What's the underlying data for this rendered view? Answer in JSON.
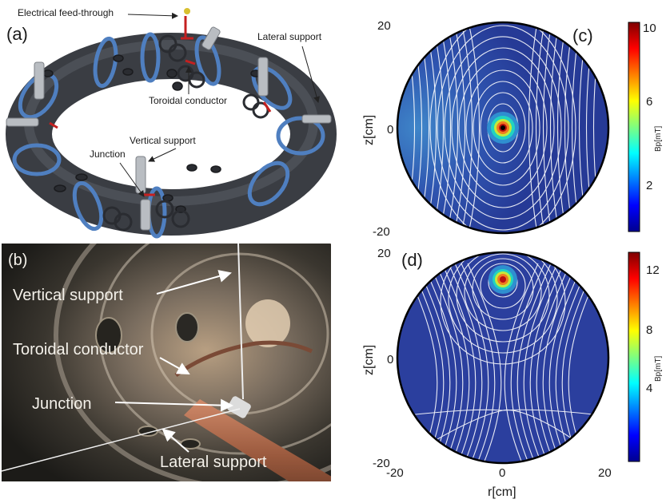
{
  "panels": {
    "a": {
      "label": "(a)",
      "callouts": {
        "feedthrough": "Electrical feed-through",
        "lateral": "Lateral support",
        "toroidal": "Toroidal conductor",
        "vertical": "Vertical support",
        "junction": "Junction"
      }
    },
    "b": {
      "label": "(b)",
      "callouts": {
        "vertical": "Vertical support",
        "toroidal": "Toroidal conductor",
        "junction": "Junction",
        "lateral": "Lateral support"
      }
    },
    "c": {
      "label": "(c)",
      "ylabel": "z[cm]",
      "ticks": {
        "z_top": "20",
        "z_mid": "0",
        "z_bot": "-20"
      },
      "colorbar": {
        "label": "Bp[mT]",
        "ticks": [
          "10",
          "6",
          "2"
        ]
      }
    },
    "d": {
      "label": "(d)",
      "ylabel": "z[cm]",
      "xlabel": "r[cm]",
      "ticks": {
        "z_top": "20",
        "z_mid": "0",
        "z_bot": "-20",
        "r_left": "-20",
        "r_mid": "0",
        "r_right": "20"
      },
      "colorbar": {
        "label": "Bp[mT]",
        "ticks": [
          "12",
          "8",
          "4"
        ]
      }
    }
  },
  "colors": {
    "field_blue": "#2b3f9e",
    "streamline": "#ffffff",
    "torus": "#3c3f45",
    "ring": "#4f7fc0",
    "copper": "#a8644a"
  }
}
